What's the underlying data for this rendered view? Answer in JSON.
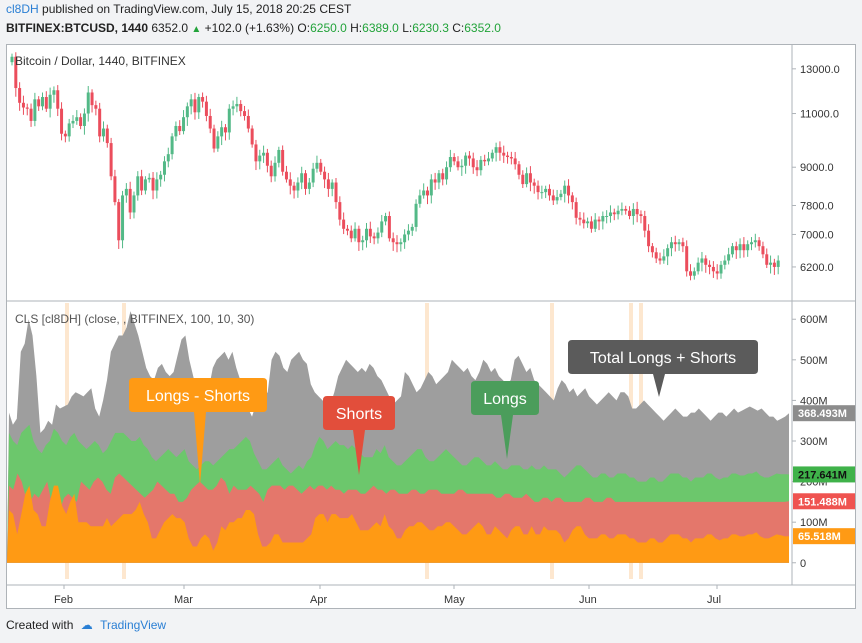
{
  "header": {
    "user": "cl8DH",
    "published_text": "published on TradingView.com, July 15, 2018 20:25 CEST",
    "symbol": "BITFINEX:BTCUSD, 1440",
    "last": "6352.0",
    "change": "+102.0 (+1.63%)",
    "o_label": "O:",
    "o": "6250.0",
    "h_label": "H:",
    "h": "6389.0",
    "l_label": "L:",
    "l": "6230.3",
    "c_label": "C:",
    "c": "6352.0"
  },
  "footer": {
    "created_with": "Created with",
    "brand": "TradingView"
  },
  "colors": {
    "up": "#53b987",
    "down": "#eb4d5c",
    "total": "#9e9e9e",
    "longs": "#6cc76c",
    "shorts": "#e4776b",
    "diff": "#ff9a14",
    "highlight": "#fde7cf"
  },
  "chart_data": [
    {
      "type": "candlestick",
      "title": "Bitcoin / Dollar, 1440, BITFINEX",
      "y_scale": "log",
      "ylim": [
        5500,
        14000
      ],
      "y_ticks": [
        "13000.0",
        "11000.0",
        "9000.0",
        "7800.0",
        "7000.0",
        "6200.0"
      ],
      "y_tick_values": [
        13000,
        11000,
        9000,
        7800,
        7000,
        6200
      ],
      "x_ticks": [
        "Feb",
        "Mar",
        "Apr",
        "May",
        "Jun",
        "Jul"
      ],
      "close": [
        13600,
        12100,
        11450,
        11250,
        11200,
        10700,
        11600,
        11300,
        11700,
        11200,
        11800,
        12000,
        11200,
        10200,
        10100,
        10600,
        10700,
        10850,
        10500,
        11000,
        11900,
        11350,
        11200,
        10100,
        10400,
        9850,
        8700,
        7900,
        6850,
        8100,
        8300,
        7600,
        8100,
        8700,
        8250,
        8600,
        8650,
        8250,
        8600,
        8750,
        9200,
        9450,
        10100,
        10500,
        10300,
        10850,
        11300,
        11600,
        11050,
        11700,
        11500,
        10900,
        10400,
        9650,
        10100,
        10450,
        10250,
        11200,
        11300,
        11400,
        11100,
        10900,
        10400,
        9800,
        9200,
        9400,
        9500,
        9050,
        8700,
        9150,
        9600,
        8850,
        8600,
        8400,
        8250,
        8500,
        8800,
        8300,
        8500,
        8950,
        9150,
        8850,
        8600,
        8300,
        8500,
        7900,
        7400,
        7150,
        7100,
        6900,
        7150,
        6800,
        6850,
        7150,
        6950,
        6900,
        7050,
        7350,
        7500,
        6900,
        6800,
        6750,
        6800,
        7000,
        7100,
        7200,
        7850,
        8100,
        8250,
        8100,
        8600,
        8500,
        8800,
        8600,
        9000,
        9350,
        9200,
        9000,
        9050,
        9400,
        9300,
        9000,
        8900,
        9250,
        9200,
        9300,
        9500,
        9700,
        9500,
        9400,
        9350,
        9300,
        9100,
        8750,
        8450,
        8800,
        8500,
        8400,
        8200,
        8200,
        8300,
        8100,
        7950,
        8050,
        8150,
        8400,
        8100,
        7900,
        7450,
        7400,
        7300,
        7350,
        7150,
        7400,
        7350,
        7500,
        7500,
        7600,
        7550,
        7650,
        7700,
        7650,
        7500,
        7700,
        7550,
        7500,
        7100,
        6700,
        6550,
        6400,
        6350,
        6450,
        6650,
        6800,
        6750,
        6800,
        6700,
        6100,
        6000,
        6100,
        6300,
        6400,
        6250,
        6200,
        6100,
        6050,
        6250,
        6350,
        6500,
        6700,
        6600,
        6750,
        6600,
        6750,
        6800,
        6850,
        6700,
        6500,
        6250,
        6300,
        6200,
        6350
      ],
      "overlay_series": [
        {
          "name": "total",
          "label": "368.493M",
          "values_M": [
            370,
            340,
            355,
            520,
            540,
            600,
            560,
            460,
            320,
            330,
            350,
            340,
            390,
            380,
            385,
            390,
            410,
            420,
            415,
            410,
            420,
            430,
            380,
            360,
            400,
            450,
            520,
            540,
            560,
            560,
            580,
            620,
            590,
            560,
            520,
            480,
            460,
            450,
            480,
            490,
            470,
            460,
            470,
            510,
            550,
            560,
            500,
            460,
            420,
            410,
            400,
            430,
            480,
            500,
            510,
            520,
            500,
            520,
            480,
            450,
            400,
            380,
            360,
            390,
            400,
            410,
            420,
            500,
            520,
            510,
            480,
            470,
            500,
            510,
            520,
            500,
            490,
            440,
            420,
            410,
            400,
            380,
            390,
            420,
            460,
            480,
            500,
            490,
            480,
            470,
            480,
            470,
            490,
            480,
            460,
            450,
            430,
            410,
            390,
            400,
            410,
            470,
            460,
            440,
            420,
            430,
            450,
            470,
            460,
            440,
            450,
            460,
            470,
            500,
            490,
            480,
            470,
            480,
            460,
            450,
            470,
            500,
            490,
            470,
            480,
            460,
            450,
            440,
            450,
            500,
            510,
            490,
            470,
            480,
            450,
            440,
            430,
            420,
            410,
            400,
            430,
            450,
            440,
            420,
            430,
            410,
            420,
            430,
            410,
            400,
            390,
            400,
            410,
            420,
            410,
            400,
            420,
            420,
            410,
            380,
            380,
            390,
            400,
            390,
            380,
            370,
            360,
            350,
            360,
            370,
            380,
            370,
            360,
            360,
            370,
            370,
            380,
            370,
            360,
            350,
            360,
            370,
            370,
            360,
            370,
            380,
            370,
            375,
            380,
            385,
            380,
            375,
            380,
            370,
            360,
            360,
            350,
            355,
            360,
            368.493
          ]
        },
        {
          "name": "longs",
          "label": "217.641M",
          "values_M": [
            320,
            300,
            290,
            320,
            330,
            340,
            300,
            280,
            270,
            290,
            300,
            330,
            320,
            300,
            290,
            310,
            320,
            300,
            290,
            280,
            290,
            300,
            290,
            270,
            280,
            300,
            320,
            320,
            320,
            310,
            300,
            300,
            310,
            290,
            280,
            260,
            250,
            260,
            270,
            280,
            270,
            260,
            270,
            280,
            250,
            240,
            230,
            240,
            250,
            250,
            240,
            250,
            260,
            270,
            280,
            280,
            290,
            300,
            310,
            300,
            270,
            250,
            230,
            230,
            240,
            250,
            260,
            240,
            230,
            220,
            230,
            240,
            230,
            250,
            260,
            290,
            310,
            300,
            280,
            290,
            300,
            290,
            290,
            280,
            290,
            280,
            270,
            260,
            260,
            260,
            280,
            270,
            290,
            260,
            250,
            240,
            240,
            250,
            260,
            270,
            280,
            280,
            260,
            250,
            250,
            260,
            270,
            280,
            270,
            260,
            250,
            240,
            240,
            250,
            260,
            260,
            250,
            240,
            240,
            250,
            240,
            230,
            230,
            240,
            240,
            240,
            230,
            230,
            240,
            230,
            230,
            240,
            230,
            230,
            230,
            220,
            210,
            220,
            230,
            240,
            240,
            230,
            220,
            210,
            210,
            220,
            220,
            210,
            210,
            220,
            220,
            220,
            210,
            210,
            200,
            200,
            200,
            210,
            210,
            200,
            200,
            210,
            220,
            220,
            220,
            210,
            210,
            200,
            210,
            210,
            210,
            220,
            220,
            210,
            205,
            210,
            210,
            220,
            220,
            215,
            215,
            220,
            220,
            225,
            215,
            210,
            210,
            215,
            220,
            218,
            218,
            217.641
          ]
        },
        {
          "name": "shorts",
          "label": "151.488M",
          "values_M": [
            190,
            180,
            220,
            200,
            160,
            150,
            170,
            160,
            180,
            200,
            150,
            140,
            130,
            160,
            170,
            160,
            150,
            200,
            190,
            180,
            200,
            210,
            200,
            180,
            170,
            210,
            220,
            210,
            200,
            190,
            180,
            170,
            160,
            170,
            180,
            200,
            190,
            180,
            170,
            170,
            150,
            150,
            160,
            180,
            190,
            200,
            190,
            180,
            180,
            190,
            210,
            200,
            170,
            190,
            180,
            180,
            180,
            190,
            180,
            170,
            150,
            180,
            190,
            190,
            190,
            180,
            190,
            190,
            180,
            170,
            180,
            190,
            180,
            190,
            190,
            180,
            190,
            180,
            180,
            170,
            180,
            180,
            180,
            170,
            170,
            180,
            190,
            180,
            180,
            170,
            180,
            180,
            170,
            170,
            170,
            180,
            180,
            170,
            170,
            180,
            180,
            180,
            170,
            170,
            170,
            170,
            180,
            180,
            170,
            170,
            170,
            170,
            170,
            170,
            170,
            160,
            160,
            170,
            170,
            160,
            160,
            160,
            170,
            160,
            150,
            150,
            160,
            160,
            150,
            160,
            160,
            150,
            150,
            150,
            150,
            150,
            160,
            160,
            150,
            150,
            150,
            160,
            160,
            150,
            150,
            150,
            150,
            150,
            150,
            150,
            150,
            150,
            150,
            150,
            150,
            150,
            150,
            150,
            150,
            150,
            150,
            150,
            150,
            150,
            150,
            150,
            150,
            150,
            150,
            150,
            150,
            150,
            150,
            150,
            150,
            150,
            150,
            150,
            150,
            150,
            150,
            150,
            150,
            150,
            151.488
          ]
        },
        {
          "name": "longs-shorts",
          "label": "65.518M",
          "values_M": [
            130,
            120,
            70,
            120,
            170,
            190,
            130,
            120,
            90,
            90,
            150,
            190,
            190,
            140,
            120,
            150,
            170,
            100,
            100,
            100,
            90,
            90,
            90,
            90,
            110,
            90,
            100,
            110,
            120,
            120,
            120,
            130,
            150,
            120,
            100,
            60,
            60,
            80,
            100,
            110,
            120,
            110,
            110,
            100,
            60,
            40,
            40,
            60,
            70,
            60,
            30,
            50,
            90,
            80,
            100,
            100,
            110,
            110,
            130,
            130,
            120,
            70,
            40,
            40,
            50,
            70,
            70,
            50,
            50,
            50,
            50,
            50,
            50,
            60,
            70,
            110,
            120,
            120,
            100,
            120,
            120,
            110,
            110,
            110,
            120,
            100,
            80,
            80,
            80,
            90,
            100,
            90,
            120,
            90,
            80,
            60,
            60,
            80,
            90,
            90,
            100,
            100,
            90,
            80,
            80,
            90,
            90,
            100,
            100,
            90,
            80,
            70,
            70,
            80,
            90,
            100,
            90,
            70,
            70,
            90,
            80,
            70,
            60,
            80,
            90,
            90,
            70,
            70,
            90,
            70,
            70,
            90,
            80,
            80,
            80,
            70,
            50,
            60,
            80,
            90,
            90,
            70,
            60,
            60,
            60,
            70,
            70,
            60,
            60,
            70,
            70,
            70,
            60,
            60,
            50,
            50,
            50,
            60,
            60,
            50,
            50,
            60,
            70,
            70,
            70,
            60,
            60,
            50,
            60,
            60,
            60,
            70,
            70,
            60,
            55,
            60,
            60,
            70,
            70,
            65,
            65,
            70,
            70,
            75,
            65,
            60,
            60,
            65,
            70,
            68,
            65,
            65.518
          ]
        }
      ],
      "lower_pane_title": "CLS [cl8DH] (close, , BITFINEX, 100, 10, 30)",
      "lower_y_ticks": [
        "600M",
        "500M",
        "400M",
        "300M",
        "200M",
        "100M",
        "0"
      ],
      "lower_y_tick_values": [
        600,
        500,
        400,
        300,
        200,
        100,
        0
      ],
      "lower_ylim": [
        -40,
        640
      ],
      "annotations": [
        "Longs - Shorts",
        "Shorts",
        "Longs",
        "Total Longs + Shorts"
      ]
    }
  ]
}
